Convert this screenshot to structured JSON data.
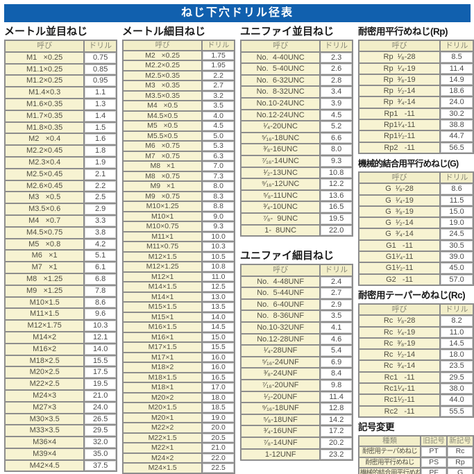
{
  "title": "ねじ下穴ドリル径表",
  "colors": {
    "title_bar": "#1160ae",
    "cell_yellow": "#f7f3d2",
    "header_yellow": "#f2eec9"
  },
  "col_headers": {
    "name": "呼び",
    "drill": "ドリル"
  },
  "tables": {
    "metric_coarse": {
      "title": "メートル並目ねじ",
      "rows": [
        [
          "M1   ×0.25",
          "0.75"
        ],
        [
          "M1.1×0.25",
          "0.85"
        ],
        [
          "M1.2×0.25",
          "0.95"
        ],
        [
          "M1.4×0.3",
          "1.1"
        ],
        [
          "M1.6×0.35",
          "1.3"
        ],
        [
          "M1.7×0.35",
          "1.4"
        ],
        [
          "M1.8×0.35",
          "1.5"
        ],
        [
          "M2   ×0.4",
          "1.6"
        ],
        [
          "M2.2×0.45",
          "1.8"
        ],
        [
          "M2.3×0.4",
          "1.9"
        ],
        [
          "M2.5×0.45",
          "2.1"
        ],
        [
          "M2.6×0.45",
          "2.2"
        ],
        [
          "M3   ×0.5",
          "2.5"
        ],
        [
          "M3.5×0.6",
          "2.9"
        ],
        [
          "M4   ×0.7",
          "3.3"
        ],
        [
          "M4.5×0.75",
          "3.8"
        ],
        [
          "M5   ×0.8",
          "4.2"
        ],
        [
          "M6   ×1",
          "5.1"
        ],
        [
          "M7   ×1",
          "6.1"
        ],
        [
          "M8   ×1.25",
          "6.8"
        ],
        [
          "M9   ×1.25",
          "7.8"
        ],
        [
          "M10×1.5",
          "8.6"
        ],
        [
          "M11×1.5",
          "9.6"
        ],
        [
          "M12×1.75",
          "10.3"
        ],
        [
          "M14×2",
          "12.1"
        ],
        [
          "M16×2",
          "14.0"
        ],
        [
          "M18×2.5",
          "15.5"
        ],
        [
          "M20×2.5",
          "17.5"
        ],
        [
          "M22×2.5",
          "19.5"
        ],
        [
          "M24×3",
          "21.0"
        ],
        [
          "M27×3",
          "24.0"
        ],
        [
          "M30×3.5",
          "26.5"
        ],
        [
          "M33×3.5",
          "29.5"
        ],
        [
          "M36×4",
          "32.0"
        ],
        [
          "M39×4",
          "35.0"
        ],
        [
          "M42×4.5",
          "37.5"
        ]
      ]
    },
    "metric_fine": {
      "title": "メートル細目ねじ",
      "rows": [
        [
          "M2   ×0.25",
          "1.75"
        ],
        [
          "M2.2×0.25",
          "1.95"
        ],
        [
          "M2.5×0.35",
          "2.2"
        ],
        [
          "M3   ×0.35",
          "2.7"
        ],
        [
          "M3.5×0.35",
          "3.2"
        ],
        [
          "M4   ×0.5",
          "3.5"
        ],
        [
          "M4.5×0.5",
          "4.0"
        ],
        [
          "M5   ×0.5",
          "4.5"
        ],
        [
          "M5.5×0.5",
          "5.0"
        ],
        [
          "M6   ×0.75",
          "5.3"
        ],
        [
          "M7   ×0.75",
          "6.3"
        ],
        [
          "M8   ×1",
          "7.0"
        ],
        [
          "M8   ×0.75",
          "7.3"
        ],
        [
          "M9   ×1",
          "8.0"
        ],
        [
          "M9   ×0.75",
          "8.3"
        ],
        [
          "M10×1.25",
          "8.8"
        ],
        [
          "M10×1",
          "9.0"
        ],
        [
          "M10×0.75",
          "9.3"
        ],
        [
          "M11×1",
          "10.0"
        ],
        [
          "M11×0.75",
          "10.3"
        ],
        [
          "M12×1.5",
          "10.5"
        ],
        [
          "M12×1.25",
          "10.8"
        ],
        [
          "M12×1",
          "11.0"
        ],
        [
          "M14×1.5",
          "12.5"
        ],
        [
          "M14×1",
          "13.0"
        ],
        [
          "M15×1.5",
          "13.5"
        ],
        [
          "M15×1",
          "14.0"
        ],
        [
          "M16×1.5",
          "14.5"
        ],
        [
          "M16×1",
          "15.0"
        ],
        [
          "M17×1.5",
          "15.5"
        ],
        [
          "M17×1",
          "16.0"
        ],
        [
          "M18×2",
          "16.0"
        ],
        [
          "M18×1.5",
          "16.5"
        ],
        [
          "M18×1",
          "17.0"
        ],
        [
          "M20×2",
          "18.0"
        ],
        [
          "M20×1.5",
          "18.5"
        ],
        [
          "M20×1",
          "19.0"
        ],
        [
          "M22×2",
          "20.0"
        ],
        [
          "M22×1.5",
          "20.5"
        ],
        [
          "M22×1",
          "21.0"
        ],
        [
          "M24×2",
          "22.0"
        ],
        [
          "M24×1.5",
          "22.5"
        ]
      ]
    },
    "unified_coarse": {
      "title": "ユニファイ並目ねじ",
      "rows": [
        [
          "No.  4-40UNC",
          "2.3"
        ],
        [
          "No.  5-40UNC",
          "2.6"
        ],
        [
          "No.  6-32UNC",
          "2.8"
        ],
        [
          "No.  8-32UNC",
          "3.4"
        ],
        [
          "No.10-24UNC",
          "3.9"
        ],
        [
          "No.12-24UNC",
          "4.5"
        ],
        [
          "¹⁄₄-20UNC",
          "5.2"
        ],
        [
          "⁵⁄₁₆-18UNC",
          "6.6"
        ],
        [
          "³⁄₈-16UNC",
          "8.0"
        ],
        [
          "⁷⁄₁₆-14UNC",
          "9.3"
        ],
        [
          "¹⁄₂-13UNC",
          "10.8"
        ],
        [
          "⁹⁄₁₆-12UNC",
          "12.2"
        ],
        [
          "⁵⁄₈-11UNC",
          "13.6"
        ],
        [
          "³⁄₄-10UNC",
          "16.5"
        ],
        [
          "⁷⁄₈-  9UNC",
          "19.5"
        ],
        [
          "1-  8UNC",
          "22.0"
        ]
      ]
    },
    "unified_fine": {
      "title": "ユニファイ細目ねじ",
      "rows": [
        [
          "No.  4-48UNF",
          "2.4"
        ],
        [
          "No.  5-44UNF",
          "2.7"
        ],
        [
          "No.  6-40UNF",
          "2.9"
        ],
        [
          "No.  8-36UNF",
          "3.5"
        ],
        [
          "No.10-32UNF",
          "4.1"
        ],
        [
          "No.12-28UNF",
          "4.6"
        ],
        [
          "¹⁄₄-28UNF",
          "5.4"
        ],
        [
          "⁵⁄₁₆-24UNF",
          "6.9"
        ],
        [
          "³⁄₈-24UNF",
          "8.4"
        ],
        [
          "⁷⁄₁₆-20UNF",
          "9.8"
        ],
        [
          "¹⁄₂-20UNF",
          "11.4"
        ],
        [
          "⁹⁄₁₆-18UNF",
          "12.8"
        ],
        [
          "⁵⁄₈-18UNF",
          "14.2"
        ],
        [
          "³⁄₄-16UNF",
          "17.2"
        ],
        [
          "⁷⁄₈-14UNF",
          "20.2"
        ],
        [
          "1-12UNF",
          "23.2"
        ]
      ]
    },
    "rp": {
      "title": "耐密用平行めねじ(Rp)",
      "rows": [
        [
          "Rp  ¹⁄₈-28",
          "8.5"
        ],
        [
          "Rp  ¹⁄₄-19",
          "11.4"
        ],
        [
          "Rp  ³⁄₈-19",
          "14.9"
        ],
        [
          "Rp  ¹⁄₂-14",
          "18.6"
        ],
        [
          "Rp  ³⁄₄-14",
          "24.0"
        ],
        [
          "Rp1   -11",
          "30.2"
        ],
        [
          "Rp1¹⁄₄-11",
          "38.8"
        ],
        [
          "Rp1¹⁄₂-11",
          "44.7"
        ],
        [
          "Rp2   -11",
          "56.5"
        ]
      ]
    },
    "g": {
      "title": "機械的結合用平行めねじ(G)",
      "rows": [
        [
          "G  ¹⁄₈-28",
          "8.6"
        ],
        [
          "G  ¹⁄₄-19",
          "11.5"
        ],
        [
          "G  ³⁄₈-19",
          "15.0"
        ],
        [
          "G  ¹⁄₂-14",
          "19.0"
        ],
        [
          "G  ³⁄₄-14",
          "24.5"
        ],
        [
          "G1   -11",
          "30.5"
        ],
        [
          "G1¹⁄₄-11",
          "39.0"
        ],
        [
          "G1¹⁄₂-11",
          "45.0"
        ],
        [
          "G2   -11",
          "57.0"
        ]
      ]
    },
    "rc": {
      "title": "耐密用テーパーめねじ(Rc)",
      "rows": [
        [
          "Rc  ¹⁄₈-28",
          "8.2"
        ],
        [
          "Rc  ¹⁄₄-19",
          "11.0"
        ],
        [
          "Rc  ³⁄₈-19",
          "14.5"
        ],
        [
          "Rc  ¹⁄₂-14",
          "18.0"
        ],
        [
          "Rc  ³⁄₄-14",
          "23.5"
        ],
        [
          "Rc1   -11",
          "29.5"
        ],
        [
          "Rc1¹⁄₄-11",
          "38.0"
        ],
        [
          "Rc1¹⁄₂-11",
          "44.0"
        ],
        [
          "Rc2   -11",
          "55.5"
        ]
      ]
    },
    "symbol_change": {
      "title": "記号変更",
      "headers": [
        "種類",
        "旧記号",
        "新記号"
      ],
      "rows": [
        [
          "耐密用テーパめねじ",
          "PT",
          "Rc"
        ],
        [
          "耐密用平行めねじ",
          "PS",
          "Rp"
        ],
        [
          "機械的結合用平行めねじ",
          "PF",
          "G"
        ]
      ]
    }
  }
}
